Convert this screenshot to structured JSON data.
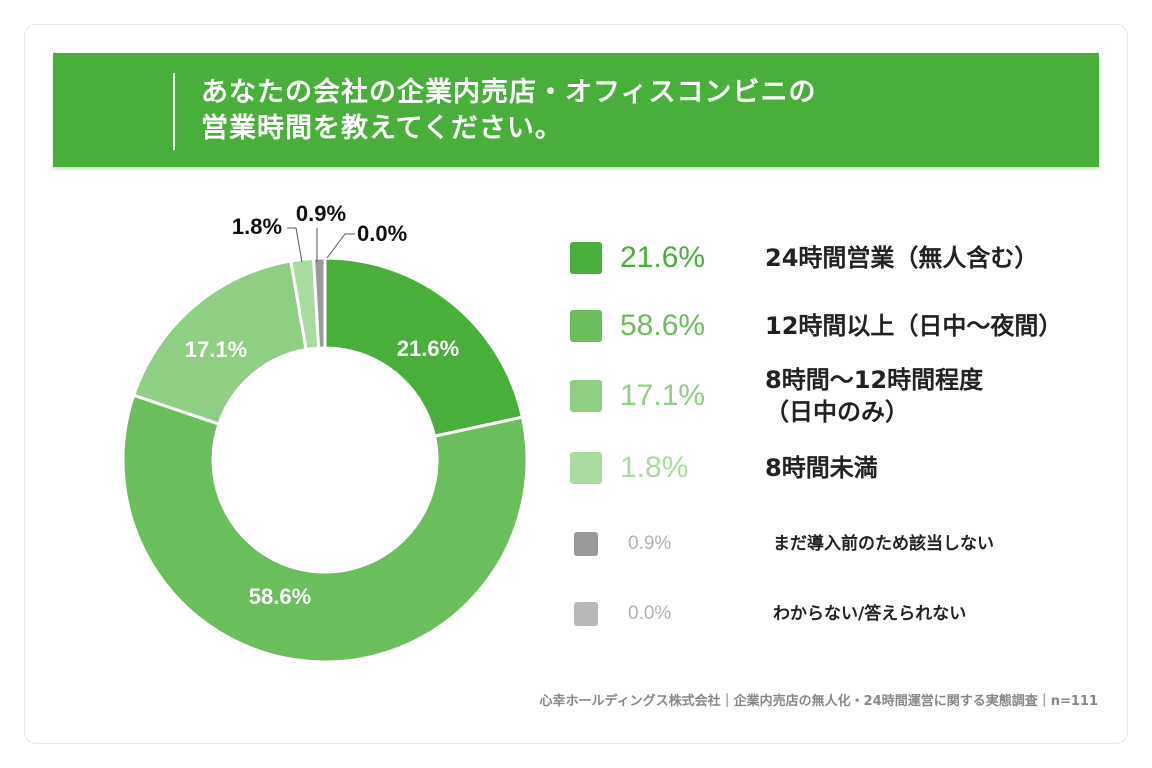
{
  "title": {
    "line1": "あなたの会社の企業内売店・オフィスコンビニの",
    "line2": "営業時間を教えてください。"
  },
  "footer": "心幸ホールディングス株式会社｜企業内売店の無人化・24時間運営に関する実態調査｜n=111",
  "chart_data": {
    "type": "pie",
    "donut": true,
    "title": "あなたの会社の企業内売店・オフィスコンビニの営業時間を教えてください。",
    "unit": "%",
    "slices": [
      {
        "label": "24時間営業（無人含む）",
        "label_lines": [
          "24時間営業（無人含む）"
        ],
        "value": 21.6,
        "value_text": "21.6%",
        "color": "#48b03a"
      },
      {
        "label": "12時間以上（日中〜夜間）",
        "label_lines": [
          "12時間以上（日中〜夜間）"
        ],
        "value": 58.6,
        "value_text": "58.6%",
        "color": "#6abf5c"
      },
      {
        "label": "8時間〜12時間程度（日中のみ）",
        "label_lines": [
          "8時間〜12時間程度",
          "（日中のみ）"
        ],
        "value": 17.1,
        "value_text": "17.1%",
        "color": "#8fcf83"
      },
      {
        "label": "8時間未満",
        "label_lines": [
          "8時間未満"
        ],
        "value": 1.8,
        "value_text": "1.8%",
        "color": "#a9dba0"
      },
      {
        "label": "まだ導入前のため該当しない",
        "label_lines": [
          "まだ導入前のため該当しない"
        ],
        "value": 0.9,
        "value_text": "0.9%",
        "color": "#9a9a9a"
      },
      {
        "label": "わからない/答えられない",
        "label_lines": [
          "わからない/答えられない"
        ],
        "value": 0.0,
        "value_text": "0.0%",
        "color": "#b8b8b8"
      }
    ],
    "legend_position": "right",
    "n": 111
  }
}
